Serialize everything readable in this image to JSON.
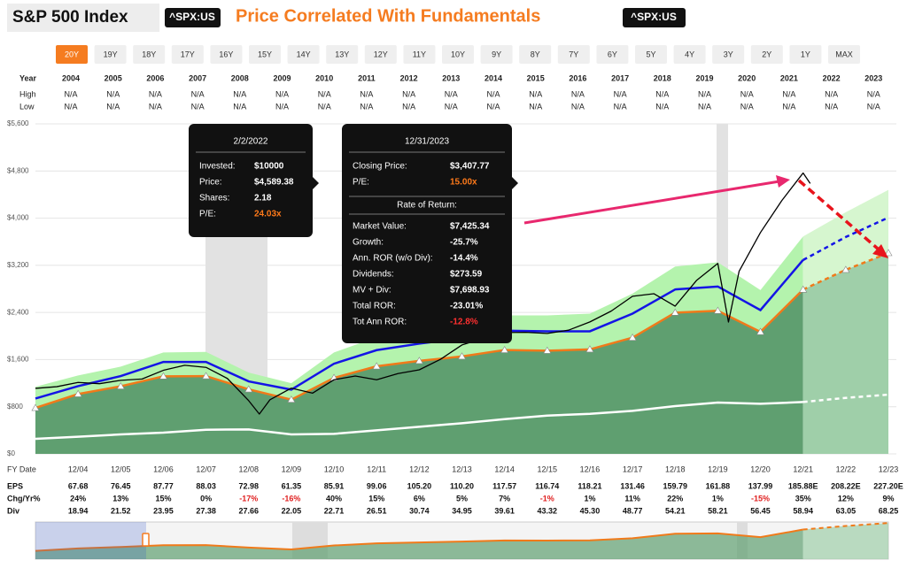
{
  "header": {
    "title": "S&P 500 Index",
    "ticker": "^SPX:US",
    "subtitle": "Price Correlated With Fundamentals",
    "ticker2": "^SPX:US",
    "subtitle_color": "#f57c20"
  },
  "range_buttons": [
    "20Y",
    "19Y",
    "18Y",
    "17Y",
    "16Y",
    "15Y",
    "14Y",
    "13Y",
    "12Y",
    "11Y",
    "10Y",
    "9Y",
    "8Y",
    "7Y",
    "6Y",
    "5Y",
    "4Y",
    "3Y",
    "2Y",
    "1Y",
    "MAX"
  ],
  "selected_index": 0,
  "price_table": {
    "row_labels": [
      "Year",
      "High",
      "Low"
    ],
    "years": [
      2004,
      2005,
      2006,
      2007,
      2008,
      2009,
      2010,
      2011,
      2012,
      2013,
      2014,
      2015,
      2016,
      2017,
      2018,
      2019,
      2020,
      2021,
      2022,
      2023
    ],
    "high": [
      "N/A",
      "N/A",
      "N/A",
      "N/A",
      "N/A",
      "N/A",
      "N/A",
      "N/A",
      "N/A",
      "N/A",
      "N/A",
      "N/A",
      "N/A",
      "N/A",
      "N/A",
      "N/A",
      "N/A",
      "N/A",
      "N/A",
      "N/A"
    ],
    "low": [
      "N/A",
      "N/A",
      "N/A",
      "N/A",
      "N/A",
      "N/A",
      "N/A",
      "N/A",
      "N/A",
      "N/A",
      "N/A",
      "N/A",
      "N/A",
      "N/A",
      "N/A",
      "N/A",
      "N/A",
      "N/A",
      "N/A",
      "N/A"
    ]
  },
  "chart_data": {
    "type": "line",
    "x_label": "FY Date",
    "categories": [
      null,
      "12/04",
      "12/05",
      "12/06",
      "12/07",
      "12/08",
      "12/09",
      "12/10",
      "12/11",
      "12/12",
      "12/13",
      "12/14",
      "12/15",
      "12/16",
      "12/17",
      "12/18",
      "12/19",
      "12/20",
      "12/21",
      "12/22",
      "12/23"
    ],
    "ylim": [
      0,
      5600
    ],
    "yticks": [
      {
        "value": 0,
        "label": "$0"
      },
      {
        "value": 800,
        "label": "$800"
      },
      {
        "value": 1600,
        "label": "$1,600"
      },
      {
        "value": 2400,
        "label": "$2,400"
      },
      {
        "value": 3200,
        "label": "$3,200"
      },
      {
        "value": 4000,
        "label": "$4,000"
      },
      {
        "value": 4800,
        "label": "$4,800"
      },
      {
        "value": 5600,
        "label": "$5,600"
      }
    ],
    "grid": true,
    "estimates_from": 18,
    "fair_value": {
      "color": "#f07a1a",
      "area_color": "#5f9f70",
      "estimate_area_color": "#9fcfa9",
      "values": [
        780,
        1015,
        1147,
        1316,
        1320,
        1095,
        920,
        1289,
        1486,
        1578,
        1653,
        1763,
        1751,
        1773,
        1972,
        2397,
        2428,
        2070,
        2788,
        3123,
        3408
      ]
    },
    "normal_value": {
      "color": "#1414e6",
      "values": [
        940,
        1150,
        1320,
        1560,
        1560,
        1230,
        1090,
        1530,
        1760,
        1870,
        1960,
        2090,
        2080,
        2080,
        2380,
        2790,
        2840,
        2440,
        3290,
        3680,
        4010
      ]
    },
    "upper_band": {
      "color": "#b4f3ad",
      "estimate_color": "#d6f6cf",
      "values": [
        1140,
        1330,
        1480,
        1720,
        1730,
        1380,
        1200,
        1720,
        1980,
        2100,
        2220,
        2350,
        2350,
        2380,
        2720,
        3180,
        3250,
        2780,
        3690,
        4100,
        4480
      ]
    },
    "dividend_line": {
      "color": "#ffffff",
      "values": [
        255,
        290,
        330,
        360,
        410,
        415,
        330,
        340,
        400,
        460,
        520,
        590,
        650,
        680,
        730,
        810,
        870,
        850,
        880,
        950,
        1005
      ]
    },
    "price": {
      "color": "#000000",
      "x": [
        "12/03",
        "06/04",
        "12/04",
        "06/05",
        "12/05",
        "06/06",
        "12/06",
        "06/07",
        "12/07",
        "06/08",
        "12/08",
        "03/09",
        "06/09",
        "12/09",
        "06/10",
        "12/10",
        "06/11",
        "12/11",
        "06/12",
        "12/12",
        "06/13",
        "12/13",
        "06/14",
        "12/14",
        "06/15",
        "12/15",
        "06/16",
        "12/16",
        "06/17",
        "12/17",
        "06/18",
        "12/18",
        "06/19",
        "12/19",
        "03/20",
        "06/20",
        "12/20",
        "06/21",
        "12/21",
        "02/22"
      ],
      "values": [
        1112,
        1140,
        1212,
        1191,
        1248,
        1270,
        1418,
        1503,
        1468,
        1280,
        903,
        676,
        919,
        1115,
        1031,
        1258,
        1321,
        1258,
        1362,
        1426,
        1606,
        1848,
        1960,
        2059,
        2063,
        2044,
        2099,
        2239,
        2423,
        2674,
        2718,
        2507,
        2942,
        3231,
        2237,
        3100,
        3756,
        4298,
        4766,
        4589
      ]
    }
  },
  "fundamentals": {
    "rows": [
      {
        "label": "EPS",
        "values": [
          67.68,
          76.45,
          87.77,
          88.03,
          72.98,
          61.35,
          85.91,
          99.06,
          105.2,
          110.2,
          117.57,
          116.74,
          118.21,
          131.46,
          159.79,
          161.88,
          137.99,
          185.88,
          208.22,
          227.2
        ],
        "value_labels": [
          "67.68",
          "76.45",
          "87.77",
          "88.03",
          "72.98",
          "61.35",
          "85.91",
          "99.06",
          "105.20",
          "110.20",
          "117.57",
          "116.74",
          "118.21",
          "131.46",
          "159.79",
          "161.88",
          "137.99",
          "185.88E",
          "208.22E",
          "227.20E"
        ]
      },
      {
        "label": "Chg/Yr%",
        "values": [
          24,
          13,
          15,
          0,
          -17,
          -16,
          40,
          15,
          6,
          5,
          7,
          -1,
          1,
          11,
          22,
          1,
          -15,
          35,
          12,
          9
        ],
        "value_labels": [
          "24%",
          "13%",
          "15%",
          "0%",
          "-17%",
          "-16%",
          "40%",
          "15%",
          "6%",
          "5%",
          "7%",
          "-1%",
          "1%",
          "11%",
          "22%",
          "1%",
          "-15%",
          "35%",
          "12%",
          "9%"
        ]
      },
      {
        "label": "Div",
        "values": [
          18.94,
          21.52,
          23.95,
          27.38,
          27.66,
          22.05,
          22.71,
          26.51,
          30.74,
          34.95,
          39.61,
          43.32,
          45.3,
          48.77,
          54.21,
          58.21,
          56.45,
          58.94,
          63.05,
          68.25
        ],
        "value_labels": [
          "18.94",
          "21.52",
          "23.95",
          "27.38",
          "27.66",
          "22.05",
          "22.71",
          "26.51",
          "30.74",
          "34.95",
          "39.61",
          "43.32",
          "45.30",
          "48.77",
          "54.21",
          "58.21",
          "56.45",
          "58.94",
          "63.05",
          "68.25"
        ]
      }
    ]
  },
  "tooltips": [
    {
      "title": "2/2/2022",
      "rows": [
        {
          "label": "Invested:",
          "value": "$10000"
        },
        {
          "label": "Price:",
          "value": "$4,589.38"
        },
        {
          "label": "Shares:",
          "value": "2.18"
        },
        {
          "label": "P/E:",
          "value": "24.03x",
          "color": "#ff7a1a"
        }
      ]
    },
    {
      "title": "12/31/2023",
      "rows": [
        {
          "label": "Closing Price:",
          "value": "$3,407.77"
        },
        {
          "label": "P/E:",
          "value": "15.00x",
          "color": "#ff7a1a"
        }
      ],
      "section": "Rate of Return:",
      "section_rows": [
        {
          "label": "Market Value:",
          "value": "$7,425.34"
        },
        {
          "label": "Growth:",
          "value": "-25.7%"
        },
        {
          "label": "Ann. ROR (w/o Div):",
          "value": "-14.4%"
        },
        {
          "label": "Dividends:",
          "value": "$273.59"
        },
        {
          "label": "MV + Div:",
          "value": "$7,698.93"
        },
        {
          "label": "Total ROR:",
          "value": "-23.01%"
        },
        {
          "label": "Tot Ann ROR:",
          "value": "-12.8%",
          "color": "#ff3030"
        }
      ]
    }
  ]
}
